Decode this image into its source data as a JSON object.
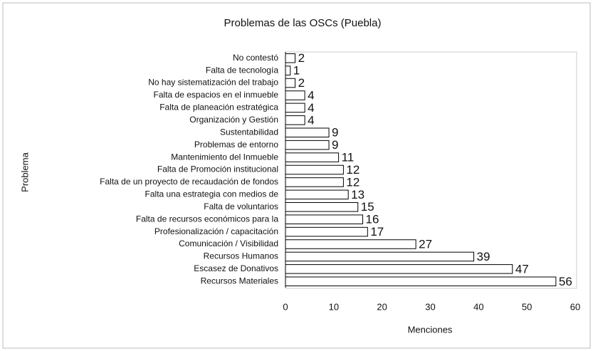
{
  "chart_data": {
    "type": "bar",
    "orientation": "horizontal",
    "title": "Problemas de las OSCs (Puebla)",
    "x_label": "Menciones",
    "y_label": "Problema",
    "categories": [
      "No contestó",
      "Falta de tecnología",
      "No hay sistematización del trabajo",
      "Falta de espacios en el inmueble",
      "Falta de planeación estratégica",
      "Organización y Gestión",
      "Sustentabilidad",
      "Problemas de entorno",
      "Mantenimiento del Inmueble",
      "Falta de Promoción institucional",
      "Falta de un proyecto de recaudación de fondos",
      "Falta una estrategia con medios de",
      "Falta de voluntarios",
      "Falta de recursos económicos para la",
      "Profesionalización / capacitación",
      "Comunicación / Visibilidad",
      "Recursos Humanos",
      "Escasez de Donativos",
      "Recursos Materiales"
    ],
    "values": [
      2,
      1,
      2,
      4,
      4,
      4,
      9,
      9,
      11,
      12,
      12,
      13,
      15,
      16,
      17,
      27,
      39,
      47,
      56
    ],
    "color": "#ffffff",
    "xlim": [
      0,
      60
    ],
    "xticks": [
      0,
      10,
      20,
      30,
      40,
      50,
      60
    ]
  }
}
